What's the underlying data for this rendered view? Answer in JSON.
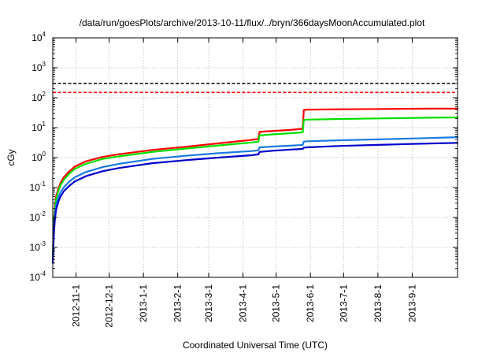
{
  "chart_data": {
    "type": "line",
    "title": "/data/run/goesPlots/archive/2013-10-11/flux/../bryn/366daysMoonAccumulated.plot",
    "xlabel": "Coordinated Universal Time (UTC)",
    "ylabel": "cGy",
    "yscale": "log",
    "ylim": [
      0.0001,
      10000
    ],
    "y_ticks": [
      {
        "base": "10",
        "exp": "-4",
        "value": 0.0001
      },
      {
        "base": "10",
        "exp": "-3",
        "value": 0.001
      },
      {
        "base": "10",
        "exp": "-2",
        "value": 0.01
      },
      {
        "base": "10",
        "exp": "-1",
        "value": 0.1
      },
      {
        "base": "10",
        "exp": "0",
        "value": 1
      },
      {
        "base": "10",
        "exp": "1",
        "value": 10
      },
      {
        "base": "10",
        "exp": "2",
        "value": 100
      },
      {
        "base": "10",
        "exp": "3",
        "value": 1000
      },
      {
        "base": "10",
        "exp": "4",
        "value": 10000
      }
    ],
    "x_domain_days": [
      0,
      366
    ],
    "x_ticks": [
      {
        "label": "2012-11-1",
        "day": 21
      },
      {
        "label": "2012-12-1",
        "day": 51
      },
      {
        "label": "2013-1-1",
        "day": 82
      },
      {
        "label": "2013-2-1",
        "day": 113
      },
      {
        "label": "2013-3-1",
        "day": 141
      },
      {
        "label": "2013-4-1",
        "day": 172
      },
      {
        "label": "2013-5-1",
        "day": 202
      },
      {
        "label": "2013-6-1",
        "day": 233
      },
      {
        "label": "2013-7-1",
        "day": 263
      },
      {
        "label": "2013-8-1",
        "day": 294
      },
      {
        "label": "2013-9-1",
        "day": 325
      }
    ],
    "reference_lines": [
      {
        "name": "limit-black",
        "value": 300,
        "color": "#000000"
      },
      {
        "name": "limit-red",
        "value": 150,
        "color": "#ff0000"
      }
    ],
    "series": [
      {
        "name": "red",
        "color": "#ff0000",
        "x": [
          0,
          1,
          2,
          3,
          5,
          7,
          10,
          15,
          20,
          30,
          45,
          60,
          90,
          120,
          150,
          180,
          186,
          187,
          200,
          215,
          226,
          227,
          230,
          260,
          300,
          340,
          366
        ],
        "y": [
          0.0005,
          0.008,
          0.025,
          0.05,
          0.09,
          0.14,
          0.22,
          0.35,
          0.5,
          0.75,
          1.05,
          1.3,
          1.8,
          2.3,
          3.0,
          3.9,
          4.2,
          7.2,
          7.8,
          8.4,
          9.2,
          39,
          40,
          41,
          42,
          43,
          43
        ]
      },
      {
        "name": "green",
        "color": "#00e000",
        "x": [
          0,
          1,
          2,
          3,
          5,
          7,
          10,
          15,
          20,
          30,
          45,
          60,
          90,
          120,
          150,
          180,
          186,
          187,
          200,
          215,
          226,
          227,
          230,
          260,
          300,
          340,
          366
        ],
        "y": [
          0.0005,
          0.007,
          0.02,
          0.04,
          0.075,
          0.12,
          0.18,
          0.29,
          0.42,
          0.62,
          0.9,
          1.1,
          1.55,
          2.0,
          2.55,
          3.2,
          3.4,
          5.5,
          6.0,
          6.5,
          7.0,
          18,
          18.5,
          19.5,
          20.5,
          21.5,
          22
        ]
      },
      {
        "name": "blue",
        "color": "#1a7ae0",
        "x": [
          0,
          1,
          2,
          3,
          5,
          7,
          10,
          15,
          20,
          30,
          45,
          60,
          90,
          120,
          150,
          180,
          186,
          187,
          200,
          215,
          226,
          227,
          230,
          260,
          300,
          340,
          366
        ],
        "y": [
          0.0004,
          0.004,
          0.012,
          0.025,
          0.045,
          0.07,
          0.1,
          0.16,
          0.22,
          0.33,
          0.48,
          0.62,
          0.9,
          1.15,
          1.4,
          1.65,
          1.75,
          2.2,
          2.35,
          2.5,
          2.65,
          3.4,
          3.5,
          3.8,
          4.1,
          4.5,
          4.8
        ]
      },
      {
        "name": "darkblue",
        "color": "#0000cc",
        "x": [
          0,
          1,
          2,
          3,
          5,
          7,
          10,
          15,
          20,
          30,
          45,
          60,
          90,
          120,
          150,
          180,
          186,
          187,
          200,
          215,
          226,
          227,
          230,
          260,
          300,
          340,
          366
        ],
        "y": [
          0.0003,
          0.003,
          0.009,
          0.018,
          0.033,
          0.05,
          0.075,
          0.115,
          0.16,
          0.24,
          0.35,
          0.45,
          0.65,
          0.82,
          1.0,
          1.2,
          1.28,
          1.55,
          1.7,
          1.85,
          1.95,
          2.15,
          2.2,
          2.45,
          2.7,
          2.95,
          3.1
        ]
      }
    ]
  }
}
